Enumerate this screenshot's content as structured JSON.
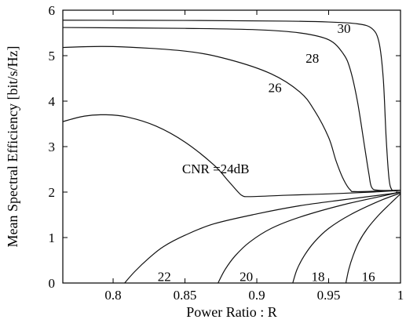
{
  "chart_data": {
    "type": "line",
    "title": "",
    "xlabel": "Power Ratio : R",
    "ylabel": "Mean Spectral Efficiency [bit/s/Hz]",
    "xlim": [
      0.765,
      1.0
    ],
    "ylim": [
      0,
      6
    ],
    "xticks": [
      {
        "value": 0.8,
        "label": "0.8"
      },
      {
        "value": 0.85,
        "label": "0.85"
      },
      {
        "value": 0.9,
        "label": "0.9"
      },
      {
        "value": 0.95,
        "label": "0.95"
      },
      {
        "value": 1.0,
        "label": "1"
      }
    ],
    "yticks": [
      {
        "value": 0,
        "label": "0"
      },
      {
        "value": 1,
        "label": "1"
      },
      {
        "value": 2,
        "label": "2"
      },
      {
        "value": 3,
        "label": "3"
      },
      {
        "value": 4,
        "label": "4"
      },
      {
        "value": 5,
        "label": "5"
      },
      {
        "value": 6,
        "label": "6"
      }
    ],
    "grid": false,
    "series": [
      {
        "name": "30",
        "x": [
          0.765,
          0.85,
          0.92,
          0.95,
          0.97,
          0.98,
          0.985,
          0.988,
          0.99,
          0.992,
          0.994,
          0.997,
          1.0
        ],
        "y": [
          5.78,
          5.775,
          5.76,
          5.74,
          5.7,
          5.6,
          5.3,
          4.5,
          3.2,
          2.3,
          2.05,
          2.03,
          2.04
        ]
      },
      {
        "name": "28",
        "x": [
          0.765,
          0.85,
          0.9,
          0.93,
          0.95,
          0.96,
          0.965,
          0.97,
          0.975,
          0.978,
          0.98,
          0.985,
          1.0
        ],
        "y": [
          5.62,
          5.6,
          5.57,
          5.5,
          5.35,
          5.05,
          4.7,
          4.0,
          3.0,
          2.4,
          2.1,
          2.04,
          2.04
        ]
      },
      {
        "name": "26",
        "x": [
          0.765,
          0.8,
          0.85,
          0.88,
          0.91,
          0.93,
          0.94,
          0.95,
          0.955,
          0.96,
          0.965,
          0.97,
          1.0
        ],
        "y": [
          5.18,
          5.2,
          5.1,
          4.92,
          4.6,
          4.2,
          3.8,
          3.2,
          2.7,
          2.3,
          2.05,
          2.01,
          2.04
        ]
      },
      {
        "name": "CNR =24dB",
        "x": [
          0.765,
          0.78,
          0.795,
          0.81,
          0.83,
          0.85,
          0.87,
          0.88,
          0.887,
          0.89,
          0.895,
          0.92,
          0.95,
          0.98,
          1.0
        ],
        "y": [
          3.55,
          3.67,
          3.7,
          3.65,
          3.45,
          3.1,
          2.6,
          2.25,
          2.0,
          1.92,
          1.9,
          1.93,
          1.96,
          2.0,
          2.04
        ]
      },
      {
        "name": "22",
        "x": [
          0.808,
          0.815,
          0.825,
          0.835,
          0.85,
          0.87,
          0.9,
          0.93,
          0.96,
          0.99,
          1.0
        ],
        "y": [
          0,
          0.25,
          0.55,
          0.8,
          1.05,
          1.3,
          1.52,
          1.7,
          1.83,
          1.95,
          2.0
        ]
      },
      {
        "name": "20",
        "x": [
          0.873,
          0.878,
          0.885,
          0.895,
          0.91,
          0.93,
          0.96,
          0.99,
          1.0
        ],
        "y": [
          0,
          0.3,
          0.6,
          0.9,
          1.2,
          1.45,
          1.72,
          1.93,
          2.0
        ]
      },
      {
        "name": "18",
        "x": [
          0.925,
          0.928,
          0.933,
          0.94,
          0.95,
          0.965,
          0.985,
          1.0
        ],
        "y": [
          0,
          0.3,
          0.6,
          0.9,
          1.2,
          1.5,
          1.8,
          1.98
        ]
      },
      {
        "name": "16",
        "x": [
          0.962,
          0.964,
          0.967,
          0.971,
          0.977,
          0.985,
          0.993,
          1.0
        ],
        "y": [
          0,
          0.3,
          0.6,
          0.9,
          1.2,
          1.5,
          1.75,
          1.96
        ]
      }
    ],
    "labels": [
      {
        "text": "30",
        "x": 0.956,
        "y": 5.6
      },
      {
        "text": "28",
        "x": 0.934,
        "y": 4.95
      },
      {
        "text": "26",
        "x": 0.908,
        "y": 4.3
      },
      {
        "text": "CNR =24dB",
        "x": 0.848,
        "y": 2.52
      },
      {
        "text": "22",
        "x": 0.831,
        "y": 0.15
      },
      {
        "text": "20",
        "x": 0.888,
        "y": 0.15
      },
      {
        "text": "18",
        "x": 0.938,
        "y": 0.15
      },
      {
        "text": "16",
        "x": 0.973,
        "y": 0.15
      }
    ]
  }
}
